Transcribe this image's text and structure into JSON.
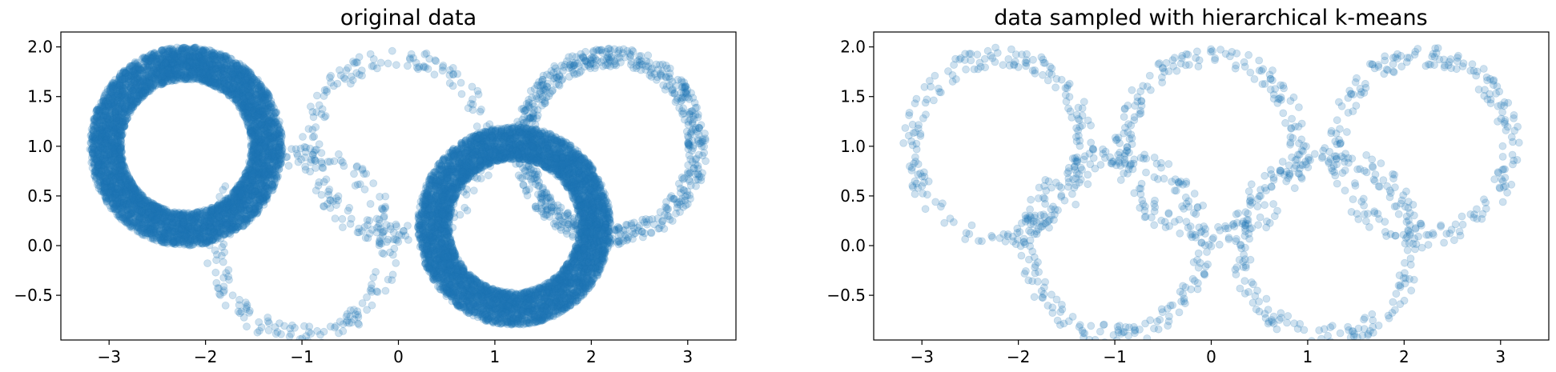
{
  "chart_data": [
    {
      "type": "scatter",
      "title": "original data",
      "xlabel": "",
      "ylabel": "",
      "xlim": [
        -3.5,
        3.5
      ],
      "ylim": [
        -0.95,
        2.15
      ],
      "xticks": [
        -3,
        -2,
        -1,
        0,
        1,
        2,
        3
      ],
      "xtick_labels": [
        "−3",
        "−2",
        "−1",
        "0",
        "1",
        "2",
        "3"
      ],
      "yticks": [
        -0.5,
        0.0,
        0.5,
        1.0,
        1.5,
        2.0
      ],
      "ytick_labels": [
        "−0.5",
        "0.0",
        "0.5",
        "1.0",
        "1.5",
        "2.0"
      ],
      "grid": false,
      "point_color": "#1f77b4",
      "point_alpha": 0.22,
      "rings": [
        {
          "cx": -2.2,
          "cy": 1.0,
          "r_inner": 0.67,
          "r_outer": 1.0,
          "density": "dense"
        },
        {
          "cx": 1.2,
          "cy": 0.2,
          "r_inner": 0.67,
          "r_outer": 1.0,
          "density": "dense"
        },
        {
          "cx": 0.0,
          "cy": 1.0,
          "r_inner": 0.8,
          "r_outer": 1.0,
          "density": "sparse"
        },
        {
          "cx": -1.0,
          "cy": 0.0,
          "r_inner": 0.8,
          "r_outer": 1.0,
          "density": "sparse"
        },
        {
          "cx": 2.2,
          "cy": 1.0,
          "r_inner": 0.8,
          "r_outer": 1.0,
          "density": "medium"
        }
      ]
    },
    {
      "type": "scatter",
      "title": "data sampled with hierarchical k-means",
      "xlabel": "",
      "ylabel": "",
      "xlim": [
        -3.5,
        3.5
      ],
      "ylim": [
        -0.95,
        2.15
      ],
      "xticks": [
        -3,
        -2,
        -1,
        0,
        1,
        2,
        3
      ],
      "xtick_labels": [
        "−3",
        "−2",
        "−1",
        "0",
        "1",
        "2",
        "3"
      ],
      "yticks": [
        -0.5,
        0.0,
        0.5,
        1.0,
        1.5,
        2.0
      ],
      "ytick_labels": [
        "−0.5",
        "0.0",
        "0.5",
        "1.0",
        "1.5",
        "2.0"
      ],
      "grid": false,
      "point_color": "#1f77b4",
      "point_alpha": 0.22,
      "rings": [
        {
          "cx": -2.2,
          "cy": 1.0,
          "r_inner": 0.8,
          "r_outer": 1.0,
          "density": "sparse"
        },
        {
          "cx": 0.0,
          "cy": 1.0,
          "r_inner": 0.8,
          "r_outer": 1.0,
          "density": "sparse"
        },
        {
          "cx": 2.2,
          "cy": 1.0,
          "r_inner": 0.8,
          "r_outer": 1.0,
          "density": "sparse"
        },
        {
          "cx": -1.0,
          "cy": 0.0,
          "r_inner": 0.8,
          "r_outer": 1.0,
          "density": "sparse"
        },
        {
          "cx": 1.2,
          "cy": 0.0,
          "r_inner": 0.8,
          "r_outer": 1.0,
          "density": "sparse"
        }
      ]
    }
  ]
}
